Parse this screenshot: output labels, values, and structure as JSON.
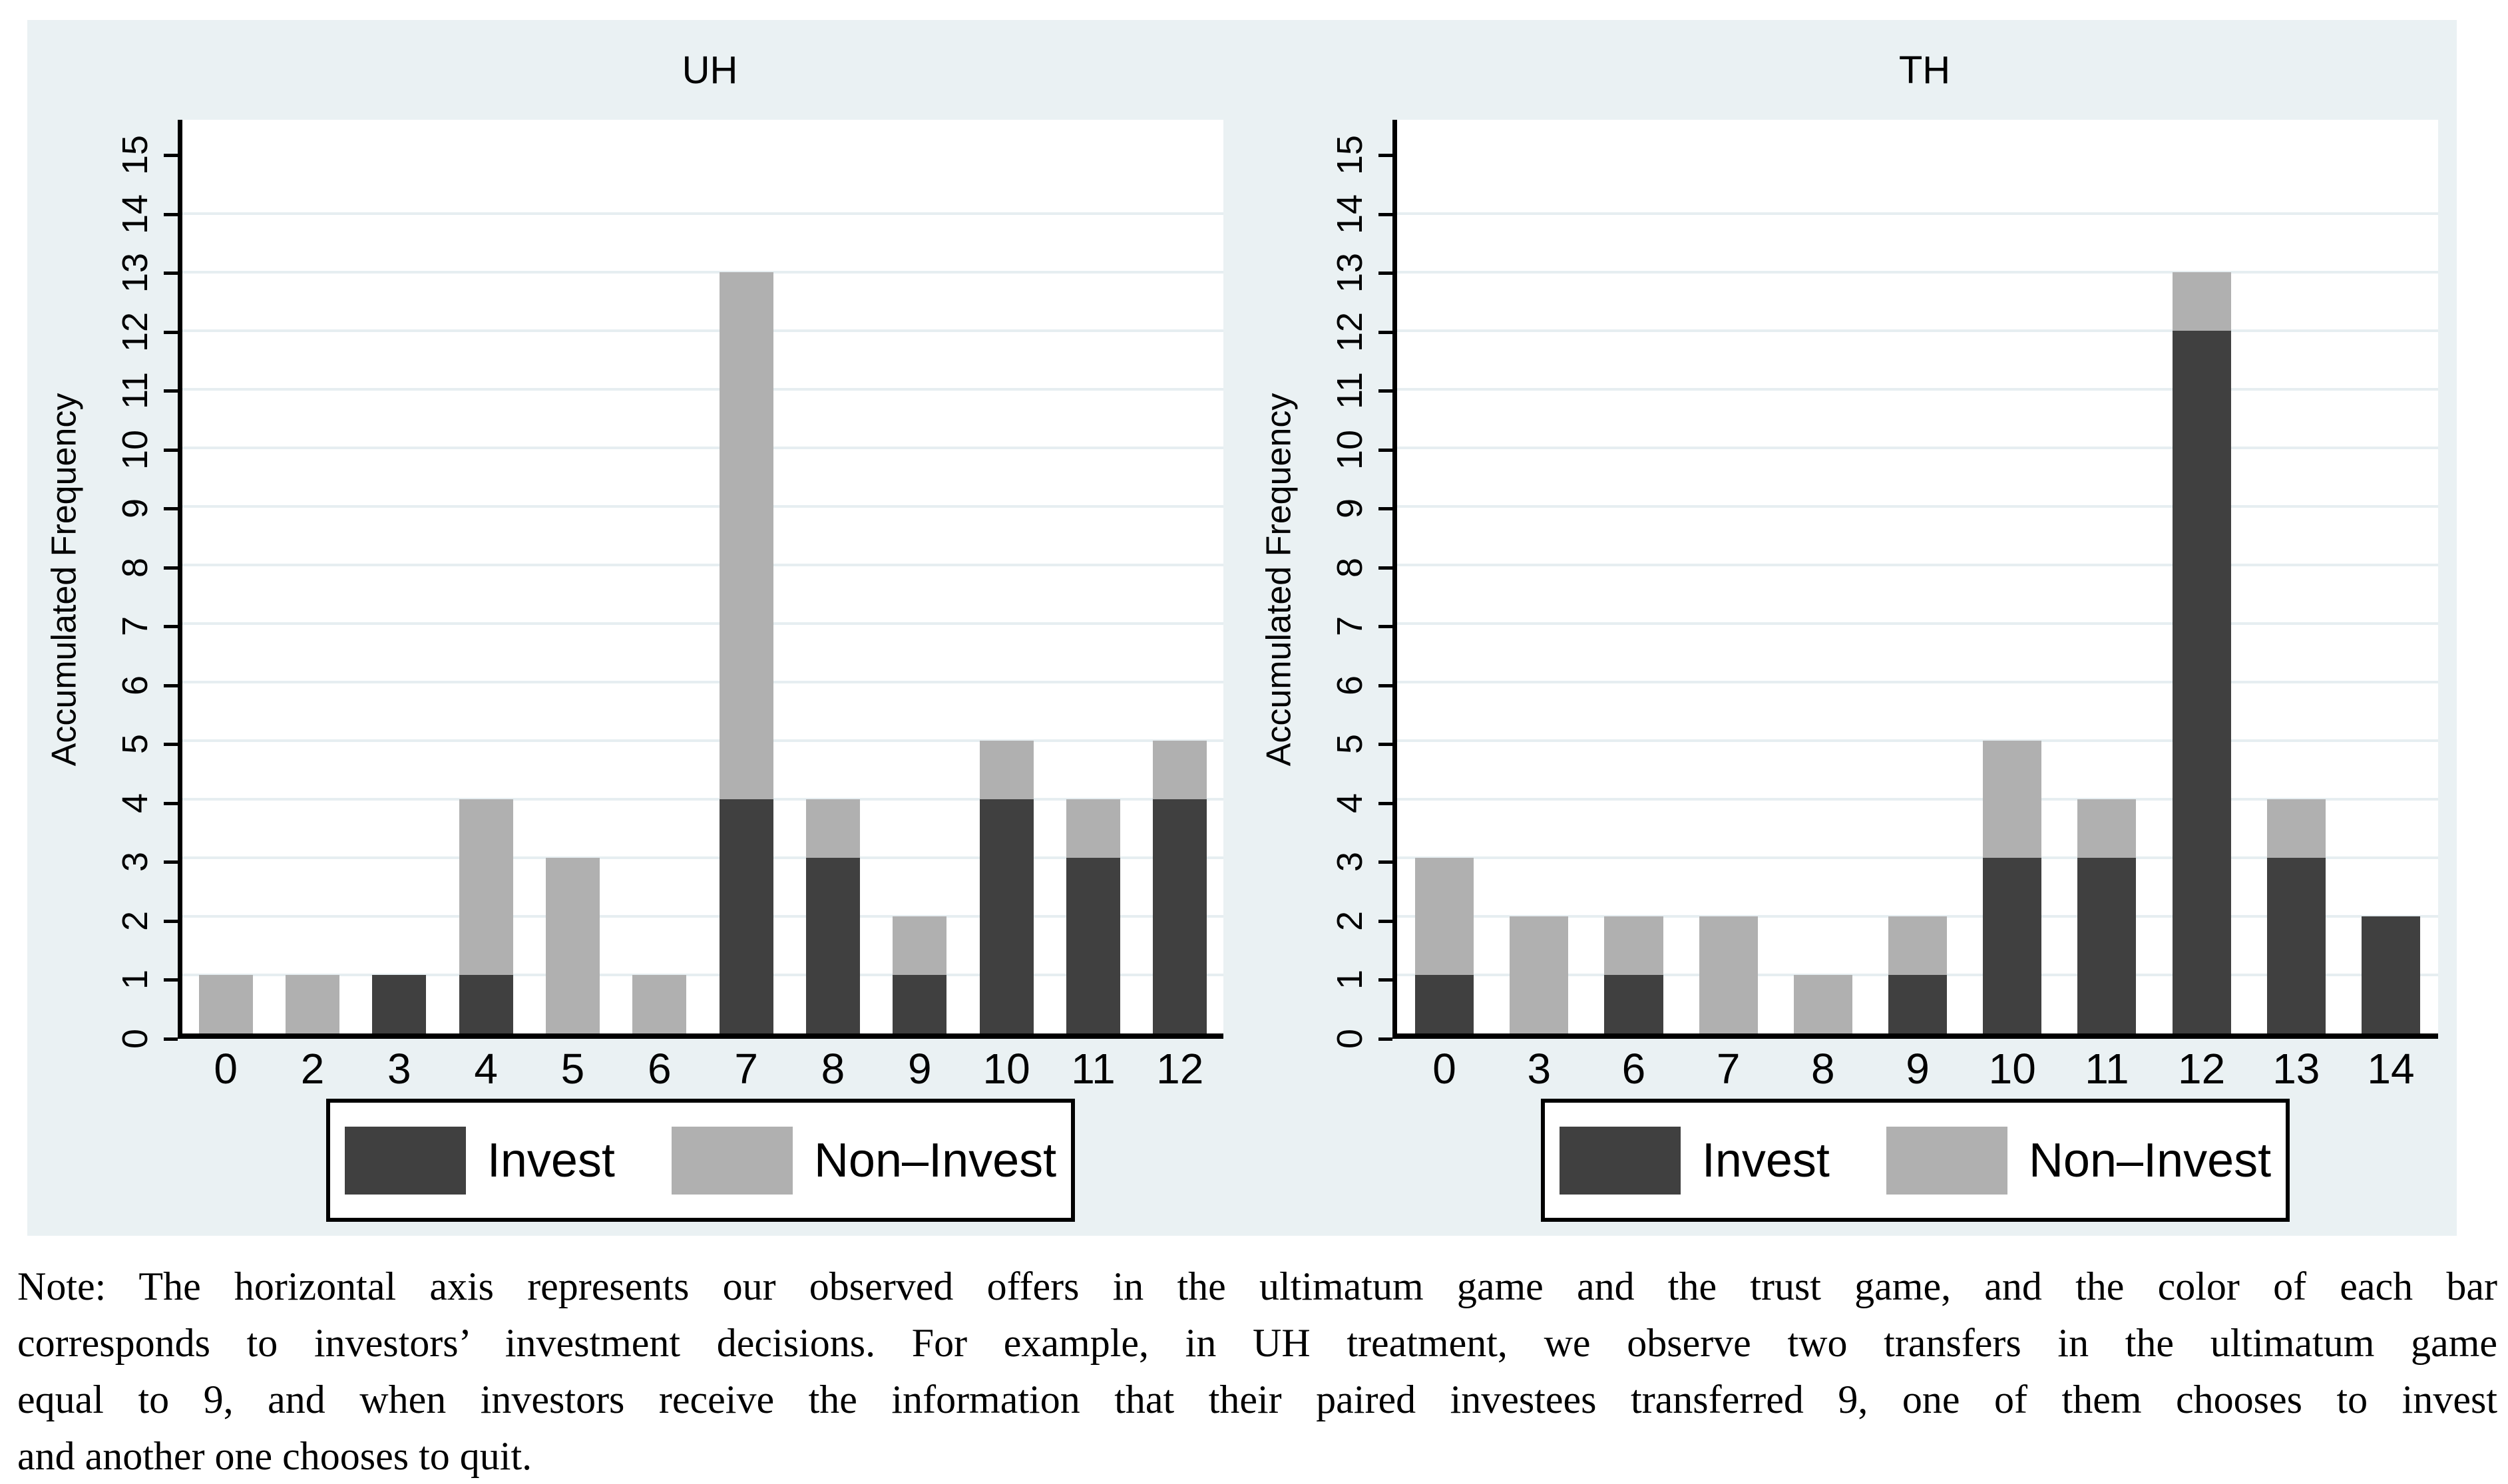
{
  "graph": {
    "background": "#eaf1f3",
    "plot_background": "#ffffff",
    "grid_color": "#e6eef1",
    "axis_color": "#000000",
    "colors": {
      "invest": "#404040",
      "noninvest": "#b0b0b0"
    },
    "legend": {
      "items": [
        {
          "label": "Invest",
          "color": "#404040"
        },
        {
          "label": "Non–Invest",
          "color": "#b0b0b0"
        }
      ]
    }
  },
  "chart_data": [
    {
      "type": "bar",
      "stacked": true,
      "title": "UH",
      "ylabel": "Accumulated Frequency",
      "xlabel": "",
      "categories": [
        "0",
        "2",
        "3",
        "4",
        "5",
        "6",
        "7",
        "8",
        "9",
        "10",
        "11",
        "12"
      ],
      "series": [
        {
          "name": "Invest",
          "values": [
            0,
            0,
            1,
            1,
            0,
            0,
            4,
            3,
            1,
            4,
            3,
            4
          ]
        },
        {
          "name": "Non–Invest",
          "values": [
            1,
            1,
            0,
            3,
            3,
            1,
            9,
            1,
            1,
            1,
            1,
            1
          ]
        }
      ],
      "ylim": [
        0,
        15.6
      ],
      "ytick_values": [
        0,
        1,
        2,
        3,
        4,
        5,
        6,
        7,
        8,
        9,
        10,
        11,
        12,
        13,
        14,
        15
      ],
      "gridline_values": [
        1,
        2,
        3,
        4,
        5,
        6,
        7,
        8,
        9,
        10,
        11,
        12,
        13,
        14
      ],
      "grid": true,
      "legend_position": "bottom"
    },
    {
      "type": "bar",
      "stacked": true,
      "title": "TH",
      "ylabel": "Accumulated Frequency",
      "xlabel": "",
      "categories": [
        "0",
        "3",
        "6",
        "7",
        "8",
        "9",
        "10",
        "11",
        "12",
        "13",
        "14"
      ],
      "series": [
        {
          "name": "Invest",
          "values": [
            1,
            0,
            1,
            0,
            0,
            1,
            3,
            3,
            12,
            3,
            2
          ]
        },
        {
          "name": "Non–Invest",
          "values": [
            2,
            2,
            1,
            2,
            1,
            1,
            2,
            1,
            1,
            1,
            0
          ]
        }
      ],
      "ylim": [
        0,
        15.6
      ],
      "ytick_values": [
        0,
        1,
        2,
        3,
        4,
        5,
        6,
        7,
        8,
        9,
        10,
        11,
        12,
        13,
        14,
        15
      ],
      "gridline_values": [
        1,
        2,
        3,
        4,
        5,
        6,
        7,
        8,
        9,
        10,
        11,
        12,
        13,
        14
      ],
      "grid": true,
      "legend_position": "bottom"
    }
  ],
  "note": {
    "lines": [
      "Note: The horizontal axis represents our observed offers in the ultimatum game and the trust game, and the color of each bar",
      "corresponds to investors’ investment decisions. For example, in UH treatment, we observe two transfers in the ultimatum game",
      "equal to 9, and when investors receive the information that their paired investees transferred 9, one of them chooses to invest",
      "and another one chooses to quit."
    ]
  }
}
